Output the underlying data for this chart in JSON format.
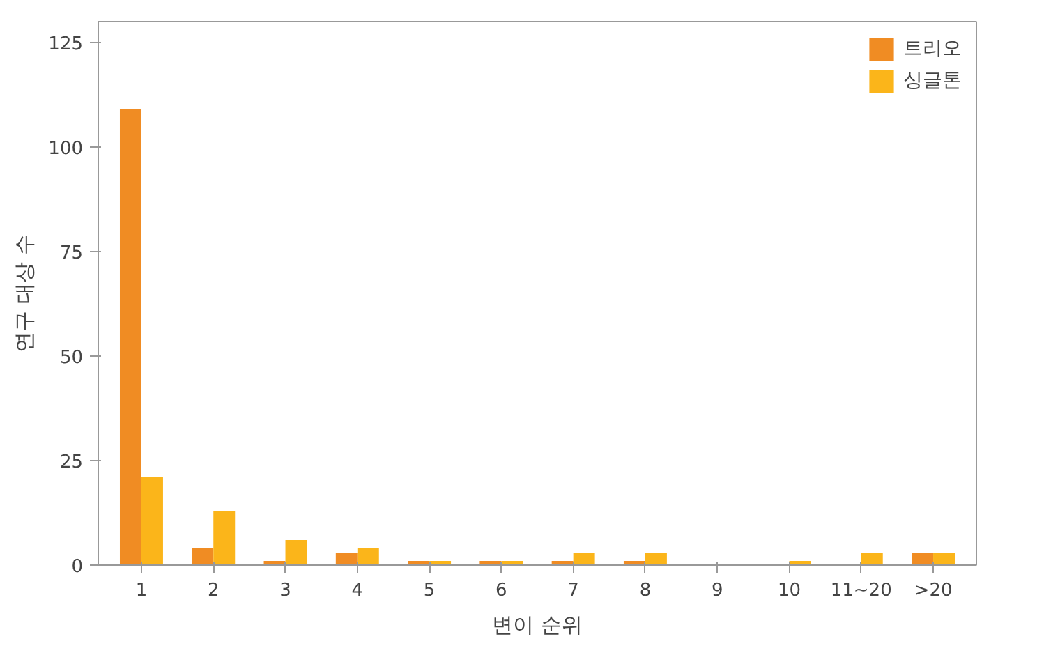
{
  "chart_data": {
    "type": "bar",
    "xlabel": "변이 순위",
    "ylabel": "연구 대상 수",
    "categories": [
      "1",
      "2",
      "3",
      "4",
      "5",
      "6",
      "7",
      "8",
      "9",
      "10",
      "11~20",
      ">20"
    ],
    "series": [
      {
        "name": "트리오",
        "color": "#f08c23",
        "values": [
          109,
          4,
          1,
          3,
          1,
          1,
          1,
          1,
          0,
          0,
          0,
          3
        ]
      },
      {
        "name": "싱글톤",
        "color": "#fbb51a",
        "values": [
          21,
          13,
          6,
          4,
          1,
          1,
          3,
          3,
          0,
          1,
          3,
          3
        ]
      }
    ],
    "ylim": [
      0,
      130
    ],
    "yticks": [
      0,
      25,
      50,
      75,
      100,
      125
    ],
    "grid": false,
    "legend": "top right"
  }
}
